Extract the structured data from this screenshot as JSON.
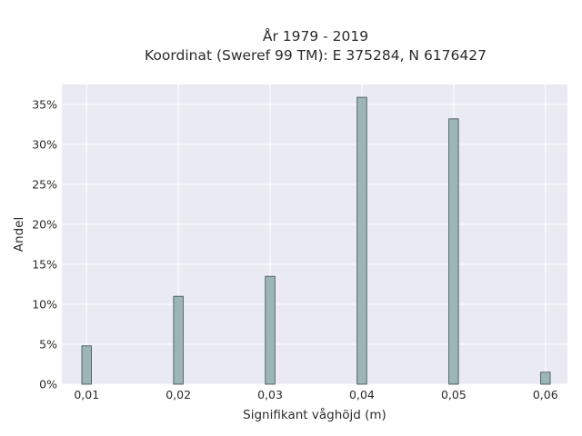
{
  "chart_data": {
    "type": "bar",
    "title_line1": "År 1979 - 2019",
    "title_line2": "Koordinat (Sweref 99 TM): E 375284, N 6176427",
    "xlabel": "Signifikant våghöjd (m)",
    "ylabel": "Andel",
    "x": [
      0.01,
      0.02,
      0.03,
      0.04,
      0.05,
      0.06
    ],
    "values": [
      4.8,
      11.0,
      13.5,
      35.9,
      33.2,
      1.5
    ],
    "xticks": [
      {
        "value": 0.01,
        "label": "0,01"
      },
      {
        "value": 0.02,
        "label": "0,02"
      },
      {
        "value": 0.03,
        "label": "0,03"
      },
      {
        "value": 0.04,
        "label": "0,04"
      },
      {
        "value": 0.05,
        "label": "0,05"
      },
      {
        "value": 0.06,
        "label": "0,06"
      }
    ],
    "yticks": [
      {
        "value": 0,
        "label": "0%"
      },
      {
        "value": 5,
        "label": "5%"
      },
      {
        "value": 10,
        "label": "10%"
      },
      {
        "value": 15,
        "label": "15%"
      },
      {
        "value": 20,
        "label": "20%"
      },
      {
        "value": 25,
        "label": "25%"
      },
      {
        "value": 30,
        "label": "30%"
      },
      {
        "value": 35,
        "label": "35%"
      }
    ],
    "xlim": [
      0.0073,
      0.0624
    ],
    "ylim": [
      0,
      37.5
    ],
    "grid": true,
    "bar_color": "#9cb6b6",
    "bar_edge_color": "#3a4a4a",
    "plot_background": "#eaeaf2",
    "grid_color": "#ffffff"
  }
}
